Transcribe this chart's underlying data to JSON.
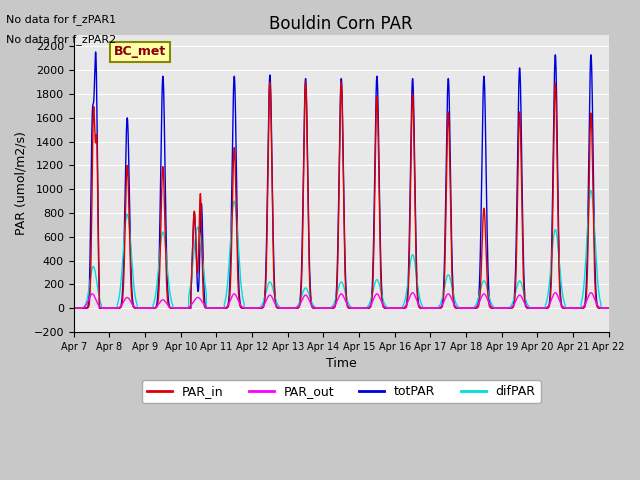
{
  "title": "Bouldin Corn PAR",
  "ylabel": "PAR (umol/m2/s)",
  "xlabel": "Time",
  "note1": "No data for f_zPAR1",
  "note2": "No data for f_zPAR2",
  "legend_label": "BC_met",
  "ylim": [
    -200,
    2300
  ],
  "yticks": [
    -200,
    0,
    200,
    400,
    600,
    800,
    1000,
    1200,
    1400,
    1600,
    1800,
    2000,
    2200
  ],
  "fig_bg_color": "#c8c8c8",
  "plot_bg_color": "#e8e8e8",
  "series": {
    "PAR_in": {
      "color": "#dd0000",
      "lw": 1.0
    },
    "PAR_out": {
      "color": "#ff00ff",
      "lw": 1.0
    },
    "totPAR": {
      "color": "#0000dd",
      "lw": 1.0
    },
    "difPAR": {
      "color": "#00dddd",
      "lw": 1.0
    }
  },
  "x_tick_labels": [
    "Apr 7",
    "Apr 8",
    "Apr 9",
    "Apr 10",
    "Apr 11",
    "Apr 12",
    "Apr 13",
    "Apr 14",
    "Apr 15",
    "Apr 16",
    "Apr 17",
    "Apr 18",
    "Apr 19",
    "Apr 20",
    "Apr 21",
    "Apr 22"
  ],
  "totPAR_peaks": [
    2080,
    1600,
    1950,
    800,
    1950,
    1960,
    1930,
    1930,
    1950,
    1930,
    1930,
    1950,
    2020,
    2130,
    2130
  ],
  "difPAR_peaks": [
    350,
    790,
    640,
    680,
    900,
    220,
    170,
    220,
    240,
    450,
    280,
    230,
    230,
    660,
    990
  ],
  "PAR_in_peaks": [
    1680,
    1200,
    1190,
    960,
    1350,
    1900,
    1900,
    1900,
    1780,
    1800,
    1650,
    840,
    1650,
    1890,
    1640
  ],
  "PAR_out_peaks": [
    120,
    90,
    70,
    90,
    120,
    110,
    110,
    120,
    120,
    130,
    120,
    120,
    110,
    130,
    130
  ],
  "n_days": 15,
  "pts_per_day": 288
}
